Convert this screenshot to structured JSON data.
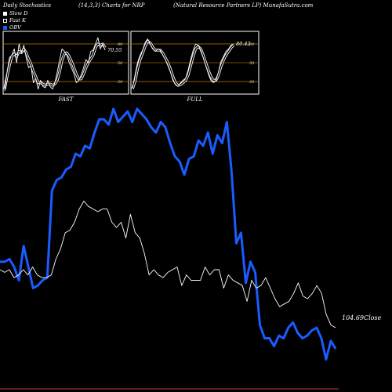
{
  "header": {
    "left": "Daily Stochastics",
    "center": "(14,3,3) Charts for NRP",
    "right": "(Natural Resource   Partners LP) MunafaSutra.com"
  },
  "legend": [
    {
      "label": "Slow  D",
      "color": "#ffffff"
    },
    {
      "label": "Fast K",
      "color": "#000000"
    },
    {
      "label": "OBV",
      "color": "#1a5cff"
    }
  ],
  "chart_data": [
    {
      "type": "line",
      "panel": "FAST",
      "xlabel": "FAST",
      "ylim": [
        0,
        100
      ],
      "yticks": [
        20,
        50,
        80
      ],
      "readout": "70.55",
      "series": [
        {
          "name": "Fast K",
          "values": [
            5,
            35,
            58,
            62,
            72,
            50,
            80,
            65,
            78,
            58,
            42,
            45,
            18,
            25,
            8,
            22,
            12,
            10,
            22,
            12,
            8,
            18,
            35,
            55,
            72,
            68,
            62,
            50,
            42,
            32,
            18,
            22,
            30,
            42,
            55,
            50,
            68,
            70,
            80,
            90,
            72,
            80,
            70
          ]
        },
        {
          "name": "Slow D",
          "values": [
            8,
            28,
            46,
            60,
            64,
            60,
            68,
            66,
            72,
            66,
            56,
            48,
            36,
            28,
            18,
            18,
            16,
            14,
            16,
            16,
            14,
            16,
            22,
            36,
            54,
            64,
            66,
            60,
            52,
            42,
            32,
            24,
            24,
            32,
            42,
            50,
            56,
            62,
            74,
            80,
            78,
            80,
            74
          ]
        }
      ]
    },
    {
      "type": "line",
      "panel": "FULL",
      "xlabel": "FULL",
      "ylim": [
        0,
        100
      ],
      "yticks": [
        20,
        50,
        80
      ],
      "readout": "80.42",
      "series": [
        {
          "name": "Fast K",
          "values": [
            10,
            30,
            50,
            62,
            70,
            82,
            88,
            80,
            72,
            68,
            72,
            70,
            62,
            55,
            45,
            35,
            22,
            15,
            12,
            18,
            22,
            25,
            38,
            55,
            70,
            80,
            78,
            70,
            58,
            45,
            32,
            22,
            18,
            22,
            35,
            52,
            60,
            68,
            72,
            78,
            80
          ]
        },
        {
          "name": "Slow D",
          "values": [
            8,
            20,
            40,
            55,
            65,
            76,
            84,
            82,
            75,
            70,
            70,
            70,
            65,
            58,
            50,
            40,
            28,
            18,
            14,
            15,
            18,
            22,
            30,
            45,
            60,
            72,
            76,
            72,
            62,
            50,
            38,
            28,
            22,
            22,
            30,
            44,
            54,
            62,
            68,
            74,
            78
          ]
        }
      ]
    },
    {
      "type": "line",
      "panel": "main",
      "readout": "104.69",
      "readout_label": "Close",
      "series": [
        {
          "name": "OBV",
          "values": [
            47,
            47,
            48,
            45,
            40,
            53,
            45,
            37,
            38,
            40,
            41,
            74,
            78,
            79,
            82,
            83,
            88,
            87,
            91,
            90,
            96,
            101,
            101,
            99,
            105,
            100,
            102,
            104,
            100,
            105,
            103,
            101,
            98,
            96,
            100,
            98,
            92,
            87,
            85,
            80,
            86,
            87,
            93,
            91,
            96,
            88,
            95,
            92,
            100,
            81,
            54,
            58,
            39,
            47,
            43,
            23,
            18,
            18,
            15,
            19,
            18,
            22,
            24,
            20,
            18,
            19,
            21,
            22,
            18,
            10,
            17,
            14
          ]
        },
        {
          "name": "Close",
          "values": [
            44,
            43,
            44,
            41,
            42,
            44,
            42,
            45,
            42,
            41,
            41,
            42,
            48,
            52,
            58,
            59,
            62,
            67,
            70,
            68,
            67,
            66,
            67,
            67,
            62,
            60,
            62,
            56,
            65,
            58,
            56,
            50,
            42,
            44,
            42,
            41,
            43,
            44,
            45,
            38,
            42,
            40,
            40,
            40,
            45,
            42,
            44,
            44,
            37,
            42,
            40,
            39,
            38,
            32,
            40,
            37,
            38,
            41,
            37,
            33,
            30,
            31,
            32,
            35,
            39,
            34,
            33,
            35,
            38,
            35,
            27,
            23,
            22
          ]
        }
      ]
    }
  ]
}
